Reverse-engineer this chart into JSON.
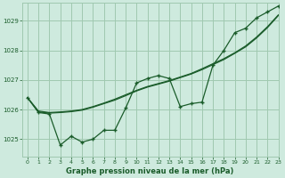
{
  "background_color": "#ceeade",
  "grid_color": "#a0c8b0",
  "line_color": "#1a5c2a",
  "title": "Graphe pression niveau de la mer (hPa)",
  "xlim": [
    -0.5,
    23
  ],
  "ylim": [
    1024.4,
    1029.6
  ],
  "yticks": [
    1025,
    1026,
    1027,
    1028,
    1029
  ],
  "xticks": [
    0,
    1,
    2,
    3,
    4,
    5,
    6,
    7,
    8,
    9,
    10,
    11,
    12,
    13,
    14,
    15,
    16,
    17,
    18,
    19,
    20,
    21,
    22,
    23
  ],
  "series_jagged": [
    1026.4,
    1025.9,
    1025.85,
    1024.8,
    1025.1,
    1024.9,
    1025.0,
    1025.3,
    1025.3,
    1026.05,
    1026.9,
    1027.05,
    1027.15,
    1027.05,
    1026.1,
    1026.2,
    1026.25,
    1027.5,
    1028.0,
    1028.6,
    1028.75,
    1029.1,
    1029.3,
    1029.5
  ],
  "series_smooth1": [
    1026.4,
    1025.95,
    1025.9,
    1025.92,
    1025.95,
    1026.0,
    1026.1,
    1026.22,
    1026.35,
    1026.5,
    1026.65,
    1026.78,
    1026.88,
    1026.98,
    1027.1,
    1027.22,
    1027.38,
    1027.55,
    1027.72,
    1027.92,
    1028.15,
    1028.45,
    1028.8,
    1029.2
  ],
  "series_smooth2": [
    1026.4,
    1025.92,
    1025.88,
    1025.9,
    1025.93,
    1025.98,
    1026.08,
    1026.2,
    1026.32,
    1026.47,
    1026.63,
    1026.76,
    1026.86,
    1026.96,
    1027.08,
    1027.2,
    1027.35,
    1027.52,
    1027.69,
    1027.9,
    1028.12,
    1028.42,
    1028.77,
    1029.18
  ]
}
